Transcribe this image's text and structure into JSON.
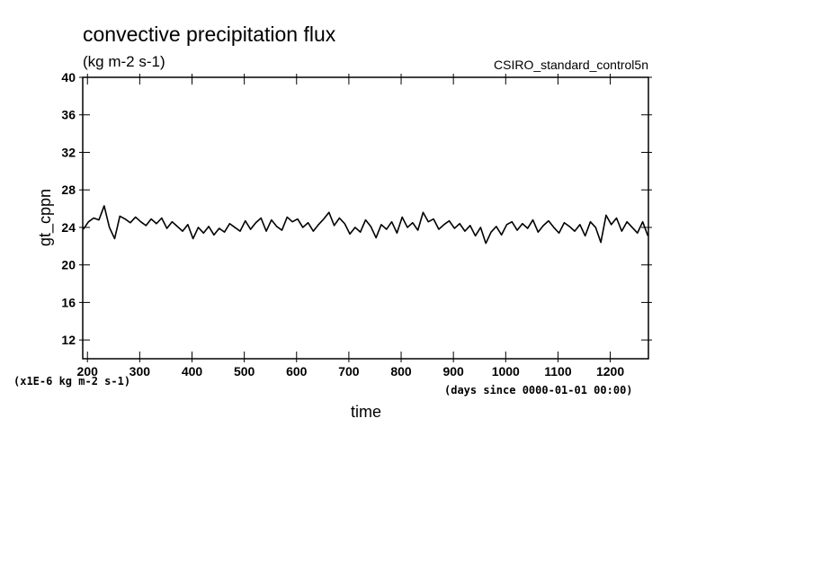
{
  "chart_data": {
    "type": "line",
    "title": "convective precipitation flux",
    "subtitle": "(kg m-2 s-1)",
    "dataset": "CSIRO_standard_control5n",
    "ylabel": "gt_cppn",
    "xlabel": "time",
    "y_units_note": "(x1E-6 kg m-2 s-1)",
    "x_units_note": "(days since 0000-01-01 00:00)",
    "color": "#000000",
    "xlim": [
      191,
      1273
    ],
    "ylim": [
      10,
      40
    ],
    "xticks": [
      200,
      300,
      400,
      500,
      600,
      700,
      800,
      900,
      1000,
      1100,
      1200
    ],
    "yticks": [
      12,
      16,
      20,
      24,
      28,
      32,
      36,
      40
    ],
    "x": [
      192,
      202,
      212,
      222,
      232,
      242,
      252,
      262,
      272,
      282,
      292,
      302,
      312,
      322,
      332,
      342,
      352,
      362,
      372,
      382,
      392,
      402,
      412,
      422,
      432,
      442,
      452,
      462,
      472,
      482,
      492,
      502,
      512,
      522,
      532,
      542,
      552,
      562,
      572,
      582,
      592,
      602,
      612,
      622,
      632,
      642,
      652,
      662,
      672,
      682,
      692,
      702,
      712,
      722,
      732,
      742,
      752,
      762,
      772,
      782,
      792,
      802,
      812,
      822,
      832,
      842,
      852,
      862,
      872,
      882,
      892,
      902,
      912,
      922,
      932,
      942,
      952,
      962,
      972,
      982,
      992,
      1002,
      1012,
      1022,
      1032,
      1042,
      1052,
      1062,
      1072,
      1082,
      1092,
      1102,
      1112,
      1122,
      1132,
      1142,
      1152,
      1162,
      1172,
      1182,
      1192,
      1202,
      1212,
      1222,
      1232,
      1242,
      1252,
      1262,
      1272
    ],
    "values": [
      23.8,
      24.6,
      25.0,
      24.8,
      26.3,
      24.0,
      22.8,
      25.2,
      24.9,
      24.5,
      25.1,
      24.6,
      24.2,
      24.9,
      24.4,
      25.0,
      23.9,
      24.6,
      24.1,
      23.6,
      24.3,
      22.8,
      24.0,
      23.4,
      24.1,
      23.2,
      23.9,
      23.5,
      24.4,
      24.0,
      23.6,
      24.7,
      23.8,
      24.5,
      25.0,
      23.6,
      24.8,
      24.1,
      23.7,
      25.1,
      24.6,
      24.9,
      24.0,
      24.5,
      23.6,
      24.3,
      24.9,
      25.6,
      24.2,
      25.0,
      24.4,
      23.3,
      24.0,
      23.5,
      24.8,
      24.1,
      22.9,
      24.3,
      23.8,
      24.6,
      23.4,
      25.1,
      24.0,
      24.5,
      23.7,
      25.6,
      24.6,
      24.9,
      23.8,
      24.3,
      24.7,
      23.9,
      24.4,
      23.6,
      24.2,
      23.1,
      24.0,
      22.3,
      23.5,
      24.1,
      23.2,
      24.3,
      24.6,
      23.7,
      24.4,
      23.9,
      24.8,
      23.5,
      24.2,
      24.7,
      24.0,
      23.4,
      24.5,
      24.1,
      23.6,
      24.3,
      23.1,
      24.6,
      24.0,
      22.4,
      25.3,
      24.3,
      25.0,
      23.6,
      24.6,
      24.0,
      23.4,
      24.6,
      23.1
    ]
  }
}
